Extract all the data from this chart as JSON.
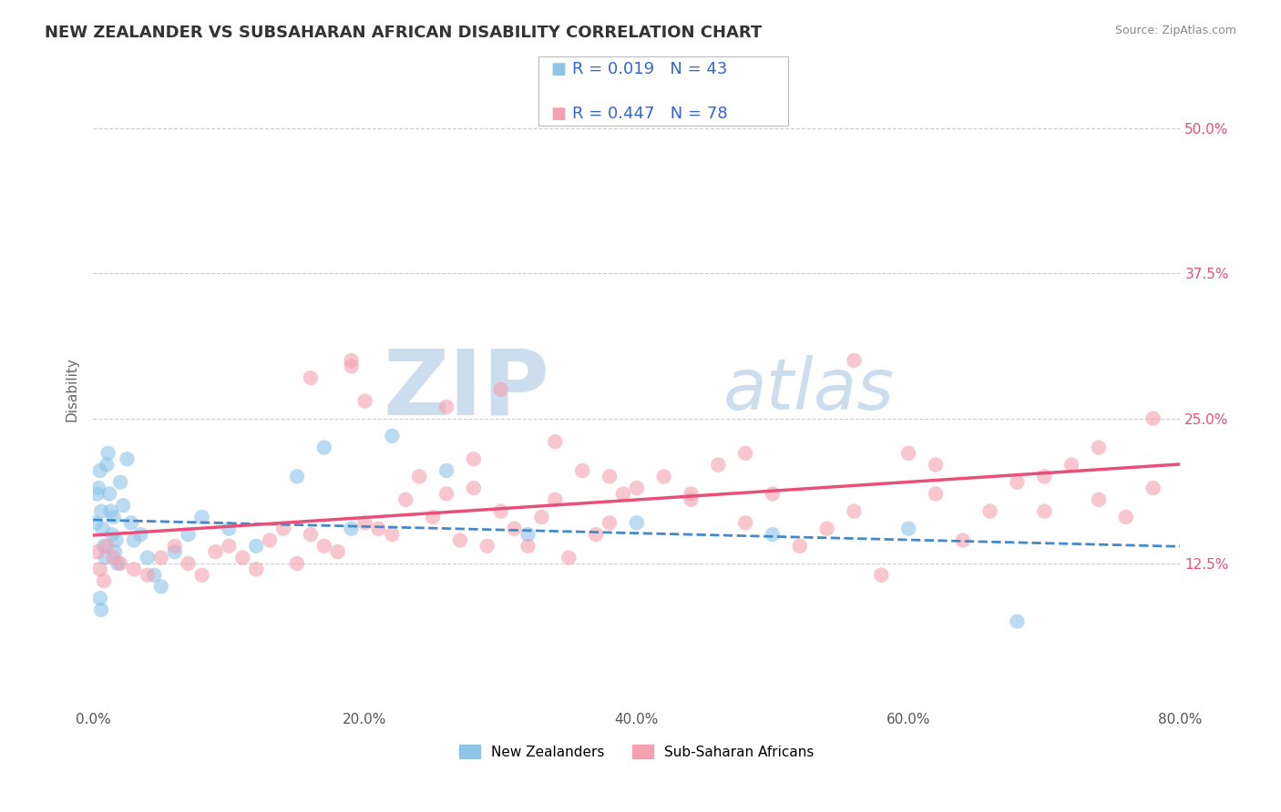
{
  "title": "NEW ZEALANDER VS SUBSAHARAN AFRICAN DISABILITY CORRELATION CHART",
  "source": "Source: ZipAtlas.com",
  "xlabel_values": [
    0.0,
    20.0,
    40.0,
    60.0,
    80.0
  ],
  "ylabel_values": [
    12.5,
    25.0,
    37.5,
    50.0
  ],
  "xlim": [
    0.0,
    80.0
  ],
  "ylim": [
    0.0,
    55.0
  ],
  "legend_R1": "0.019",
  "legend_N1": "43",
  "legend_R2": "0.447",
  "legend_N2": "78",
  "ylabel": "Disability",
  "blue_color": "#8dc4e8",
  "pink_color": "#f4a0b0",
  "blue_line_color": "#4488cc",
  "pink_line_color": "#e8507a",
  "legend_text_color": "#3366cc",
  "watermark_ZIP": "ZIP",
  "watermark_atlas": "atlas",
  "watermark_color": "#ccdded",
  "legend_label1": "New Zealanders",
  "legend_label2": "Sub-Saharan Africans",
  "grid_color": "#cccccc",
  "background_color": "#ffffff",
  "title_fontsize": 13,
  "axis_label_fontsize": 11,
  "tick_fontsize": 11,
  "legend_fontsize": 13,
  "nz_x": [
    0.2,
    0.3,
    0.4,
    0.5,
    0.6,
    0.7,
    0.8,
    0.9,
    1.0,
    1.1,
    1.2,
    1.3,
    1.4,
    1.5,
    1.6,
    1.7,
    1.8,
    2.0,
    2.2,
    2.5,
    2.8,
    3.0,
    3.5,
    4.0,
    4.5,
    5.0,
    6.0,
    7.0,
    8.0,
    10.0,
    12.0,
    15.0,
    17.0,
    19.0,
    22.0,
    26.0,
    32.0,
    40.0,
    50.0,
    60.0,
    68.0,
    0.5,
    0.6
  ],
  "nz_y": [
    16.0,
    18.5,
    19.0,
    20.5,
    17.0,
    15.5,
    14.0,
    13.0,
    21.0,
    22.0,
    18.5,
    17.0,
    15.0,
    16.5,
    13.5,
    14.5,
    12.5,
    19.5,
    17.5,
    21.5,
    16.0,
    14.5,
    15.0,
    13.0,
    11.5,
    10.5,
    13.5,
    15.0,
    16.5,
    15.5,
    14.0,
    20.0,
    22.5,
    15.5,
    23.5,
    20.5,
    15.0,
    16.0,
    15.0,
    15.5,
    7.5,
    9.5,
    8.5
  ],
  "ssa_x": [
    0.3,
    0.5,
    0.8,
    1.0,
    1.5,
    2.0,
    3.0,
    4.0,
    5.0,
    6.0,
    7.0,
    8.0,
    9.0,
    10.0,
    11.0,
    12.0,
    13.0,
    14.0,
    15.0,
    16.0,
    17.0,
    18.0,
    19.0,
    20.0,
    21.0,
    22.0,
    23.0,
    24.0,
    25.0,
    26.0,
    27.0,
    28.0,
    29.0,
    30.0,
    31.0,
    32.0,
    33.0,
    34.0,
    35.0,
    36.0,
    37.0,
    38.0,
    39.0,
    40.0,
    42.0,
    44.0,
    46.0,
    48.0,
    50.0,
    52.0,
    54.0,
    56.0,
    58.0,
    60.0,
    62.0,
    64.0,
    66.0,
    68.0,
    70.0,
    72.0,
    74.0,
    76.0,
    78.0,
    19.0,
    28.0,
    34.0,
    44.0,
    16.0,
    20.0,
    26.0,
    30.0,
    38.0,
    48.0,
    56.0,
    62.0,
    70.0,
    74.0,
    78.0
  ],
  "ssa_y": [
    13.5,
    12.0,
    11.0,
    14.0,
    13.0,
    12.5,
    12.0,
    11.5,
    13.0,
    14.0,
    12.5,
    11.5,
    13.5,
    14.0,
    13.0,
    12.0,
    14.5,
    15.5,
    12.5,
    15.0,
    14.0,
    13.5,
    30.0,
    16.0,
    15.5,
    15.0,
    18.0,
    20.0,
    16.5,
    18.5,
    14.5,
    19.0,
    14.0,
    17.0,
    15.5,
    14.0,
    16.5,
    18.0,
    13.0,
    20.5,
    15.0,
    16.0,
    18.5,
    19.0,
    20.0,
    18.0,
    21.0,
    16.0,
    18.5,
    14.0,
    15.5,
    17.0,
    11.5,
    22.0,
    18.5,
    14.5,
    17.0,
    19.5,
    20.0,
    21.0,
    18.0,
    16.5,
    25.0,
    29.5,
    21.5,
    23.0,
    18.5,
    28.5,
    26.5,
    26.0,
    27.5,
    20.0,
    22.0,
    30.0,
    21.0,
    17.0,
    22.5,
    19.0
  ]
}
